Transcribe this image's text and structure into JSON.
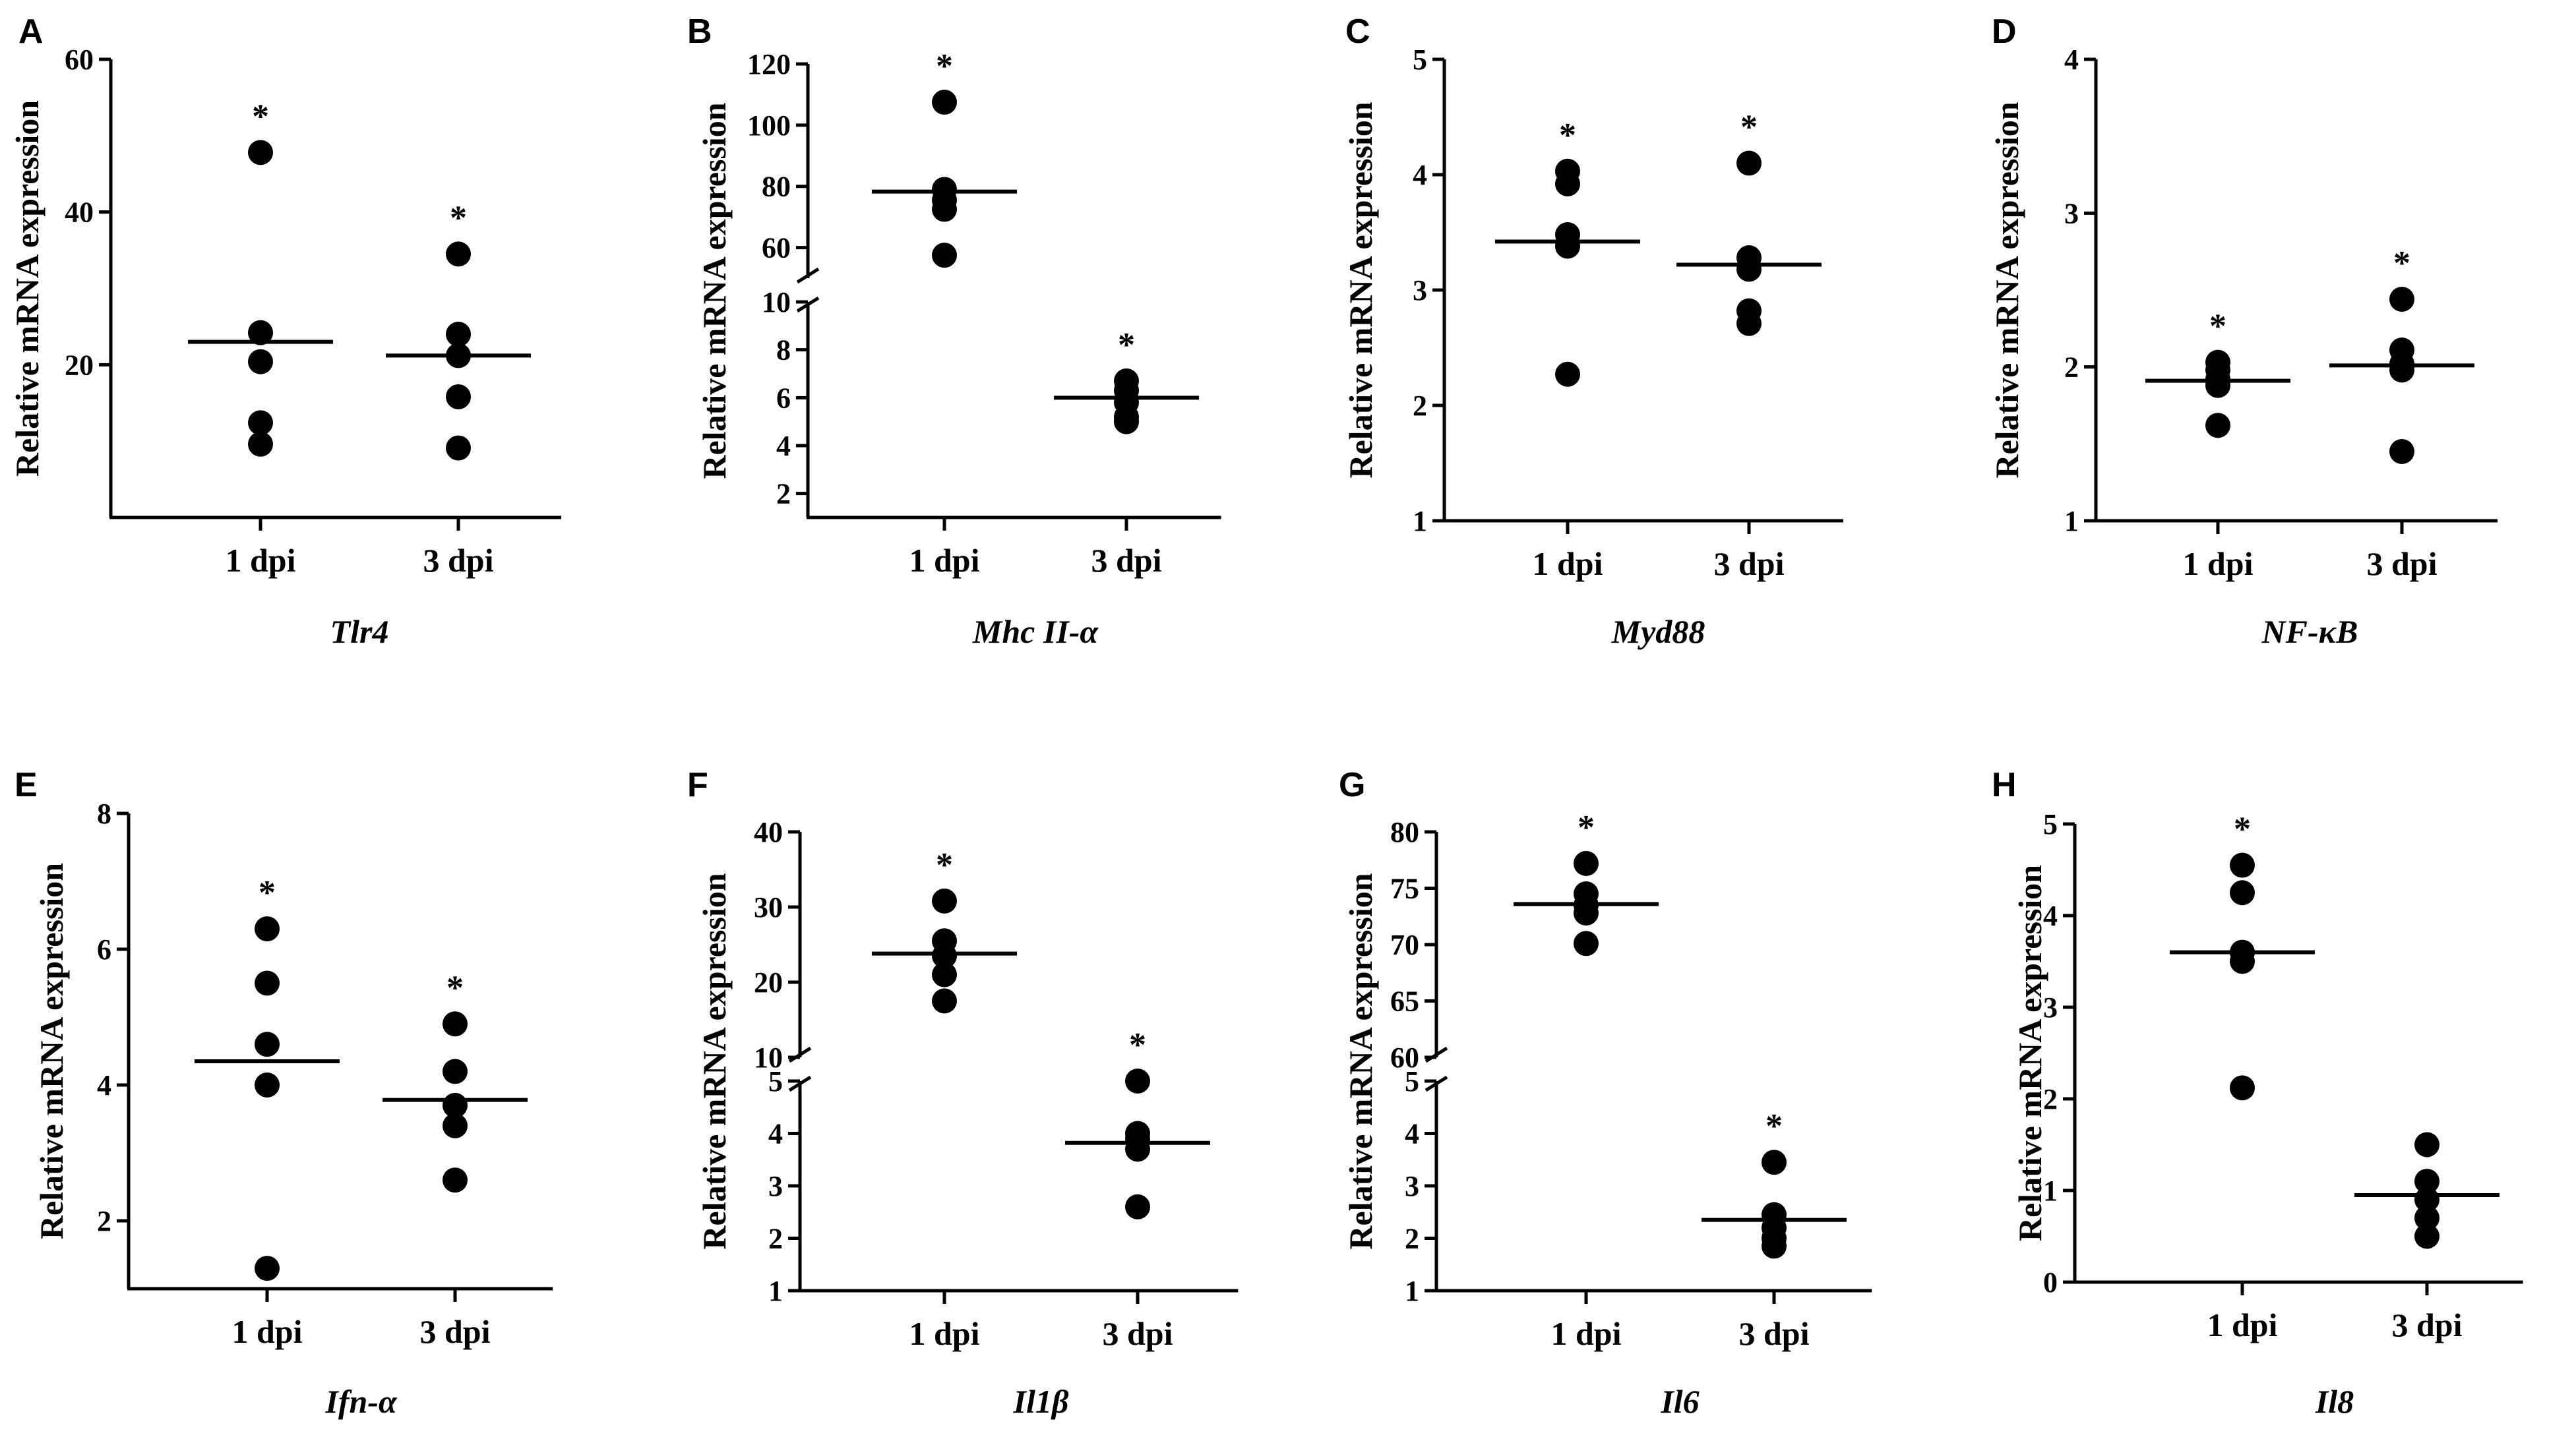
{
  "figure": {
    "panels": [
      "A",
      "B",
      "C",
      "D",
      "E",
      "F",
      "G",
      "H"
    ]
  },
  "chart_data": [
    {
      "panel": "A",
      "type": "scatter",
      "gene": "Tlr4",
      "ylabel": "Relative mRNA expression",
      "categories": [
        "1 dpi",
        "3 dpi"
      ],
      "ylim": [
        0,
        60
      ],
      "yticks": [
        20,
        40,
        60
      ],
      "points": [
        [
          47.8,
          24.2,
          20.4,
          12.4,
          9.6
        ],
        [
          34.5,
          24.0,
          21.2,
          15.8,
          9.1
        ]
      ],
      "means": [
        23.0,
        21.2
      ],
      "significance": [
        "*",
        "*"
      ]
    },
    {
      "panel": "B",
      "type": "scatter",
      "gene": "Mhc II-α",
      "ylabel": "Relative mRNA expression",
      "categories": [
        "1 dpi",
        "3 dpi"
      ],
      "broken_axis": true,
      "lower_ylim": [
        1,
        10
      ],
      "lower_yticks": [
        2,
        4,
        6,
        8,
        10
      ],
      "upper_ylim": [
        50,
        120
      ],
      "upper_yticks": [
        60,
        80,
        100,
        120
      ],
      "points": [
        [
          107.5,
          79.0,
          75.5,
          72.5,
          57.5
        ],
        [
          6.7,
          6.3,
          5.8,
          5.2,
          5.0
        ]
      ],
      "means": [
        78.3,
        6.0
      ],
      "significance": [
        "*",
        "*"
      ]
    },
    {
      "panel": "C",
      "type": "scatter",
      "gene": "Myd88",
      "ylabel": "Relative mRNA expression",
      "categories": [
        "1 dpi",
        "3 dpi"
      ],
      "ylim": [
        1,
        5
      ],
      "yticks": [
        1,
        2,
        3,
        4,
        5
      ],
      "points": [
        [
          4.03,
          3.92,
          3.48,
          3.38,
          2.27
        ],
        [
          4.1,
          3.28,
          3.18,
          2.82,
          2.71
        ]
      ],
      "means": [
        3.42,
        3.22
      ],
      "significance": [
        "*",
        "*"
      ]
    },
    {
      "panel": "D",
      "type": "scatter",
      "gene": "NF-κB",
      "ylabel": "Relative mRNA expression",
      "categories": [
        "1 dpi",
        "3 dpi"
      ],
      "ylim": [
        1,
        4
      ],
      "yticks": [
        1,
        2,
        3,
        4
      ],
      "points": [
        [
          2.03,
          1.98,
          1.92,
          1.88,
          1.62
        ],
        [
          2.44,
          2.11,
          2.02,
          1.98,
          1.45
        ]
      ],
      "means": [
        1.91,
        2.01
      ],
      "significance": [
        "*",
        "*"
      ]
    },
    {
      "panel": "E",
      "type": "scatter",
      "gene": "Ifn-α",
      "ylabel": "Relative mRNA expression",
      "categories": [
        "1 dpi",
        "3 dpi"
      ],
      "ylim": [
        1,
        8
      ],
      "yticks": [
        2,
        4,
        6,
        8
      ],
      "points": [
        [
          6.3,
          5.5,
          4.6,
          4.0,
          1.3
        ],
        [
          4.9,
          4.2,
          3.7,
          3.4,
          2.6
        ]
      ],
      "means": [
        4.35,
        3.78
      ],
      "significance": [
        "*",
        "*"
      ]
    },
    {
      "panel": "F",
      "type": "scatter",
      "gene": "Il1β",
      "ylabel": "Relative mRNA expression",
      "categories": [
        "1 dpi",
        "3 dpi"
      ],
      "broken_axis": true,
      "lower_ylim": [
        1,
        5
      ],
      "lower_yticks": [
        1,
        2,
        3,
        4,
        5
      ],
      "upper_ylim": [
        10,
        40
      ],
      "upper_yticks": [
        10,
        20,
        30,
        40
      ],
      "points": [
        [
          30.8,
          25.5,
          23.5,
          21.0,
          17.5
        ],
        [
          5.0,
          4.0,
          3.9,
          3.7,
          2.6
        ]
      ],
      "means": [
        23.8,
        3.82
      ],
      "significance": [
        "*",
        "*"
      ]
    },
    {
      "panel": "G",
      "type": "scatter",
      "gene": "Il6",
      "ylabel": "Relative mRNA expression",
      "categories": [
        "1 dpi",
        "3 dpi"
      ],
      "broken_axis": true,
      "lower_ylim": [
        1,
        5
      ],
      "lower_yticks": [
        1,
        2,
        3,
        4,
        5
      ],
      "upper_ylim": [
        60,
        80
      ],
      "upper_yticks": [
        60,
        65,
        70,
        75,
        80
      ],
      "points": [
        [
          77.2,
          74.5,
          73.5,
          72.8,
          70.1
        ],
        [
          3.45,
          2.45,
          2.2,
          2.0,
          1.85
        ]
      ],
      "means": [
        73.6,
        2.35
      ],
      "significance": [
        "*",
        "*"
      ]
    },
    {
      "panel": "H",
      "type": "scatter",
      "gene": "Il8",
      "ylabel": "Relative mRNA expression",
      "categories": [
        "1 dpi",
        "3 dpi"
      ],
      "ylim": [
        0,
        5
      ],
      "yticks": [
        0,
        1,
        2,
        3,
        4,
        5
      ],
      "points": [
        [
          4.55,
          4.25,
          3.6,
          3.5,
          2.12
        ],
        [
          1.5,
          1.1,
          0.9,
          0.7,
          0.5
        ]
      ],
      "means": [
        3.6,
        0.95
      ],
      "significance": [
        "*",
        ""
      ]
    }
  ]
}
